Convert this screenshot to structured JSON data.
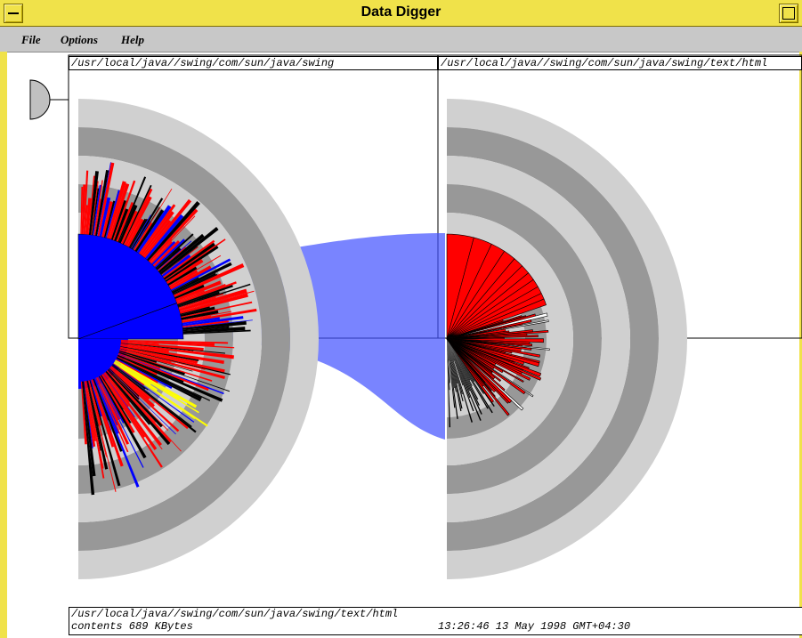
{
  "window": {
    "title": "Data Digger"
  },
  "menu": {
    "items": [
      "File",
      "Options",
      "Help"
    ]
  },
  "left_panel": {
    "path": "/usr/local/java//swing/com/sun/java/swing"
  },
  "right_panel": {
    "path": "/usr/local/java//swing/com/sun/java/swing/text/html"
  },
  "status": {
    "path": "/usr/local/java//swing/com/sun/java/swing/text/html",
    "contents": "contents 689 KBytes",
    "timestamp": "13:26:46  13 May 1998 GMT+04:30"
  },
  "colors": {
    "title_bar": "#f0e24a",
    "menu_bar": "#c8c8c8",
    "directory": "#0000ff",
    "file": "#ff0000",
    "highlight": "#ffff00",
    "ring_light": "#d0d0d0",
    "ring_dark": "#989898",
    "link": "#4050ff"
  }
}
